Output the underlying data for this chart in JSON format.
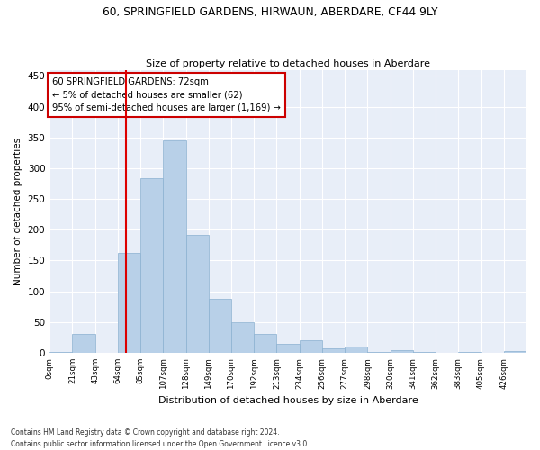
{
  "title": "60, SPRINGFIELD GARDENS, HIRWAUN, ABERDARE, CF44 9LY",
  "subtitle": "Size of property relative to detached houses in Aberdare",
  "xlabel": "Distribution of detached houses by size in Aberdare",
  "ylabel": "Number of detached properties",
  "footer_line1": "Contains HM Land Registry data © Crown copyright and database right 2024.",
  "footer_line2": "Contains public sector information licensed under the Open Government Licence v3.0.",
  "bar_labels": [
    "0sqm",
    "21sqm",
    "43sqm",
    "64sqm",
    "85sqm",
    "107sqm",
    "128sqm",
    "149sqm",
    "170sqm",
    "192sqm",
    "213sqm",
    "234sqm",
    "256sqm",
    "277sqm",
    "298sqm",
    "320sqm",
    "341sqm",
    "362sqm",
    "383sqm",
    "405sqm",
    "426sqm"
  ],
  "bar_values": [
    2,
    30,
    0,
    163,
    284,
    346,
    191,
    88,
    50,
    30,
    14,
    20,
    7,
    10,
    1,
    5,
    2,
    0,
    2,
    0,
    3
  ],
  "bar_color": "#b8d0e8",
  "bar_edge_color": "#8ab0d0",
  "annotation_line1": "60 SPRINGFIELD GARDENS: 72sqm",
  "annotation_line2": "← 5% of detached houses are smaller (62)",
  "annotation_line3": "95% of semi-detached houses are larger (1,169) →",
  "vline_x": 3.5,
  "vline_color": "#dd0000",
  "ylim": [
    0,
    460
  ],
  "yticks": [
    0,
    50,
    100,
    150,
    200,
    250,
    300,
    350,
    400,
    450
  ],
  "bg_color": "#ffffff",
  "plot_bg_color": "#e8eef8",
  "grid_color": "#ffffff",
  "annotation_box_edge": "#cc0000",
  "bin_width": 21,
  "title_fontsize": 9,
  "subtitle_fontsize": 8.5
}
